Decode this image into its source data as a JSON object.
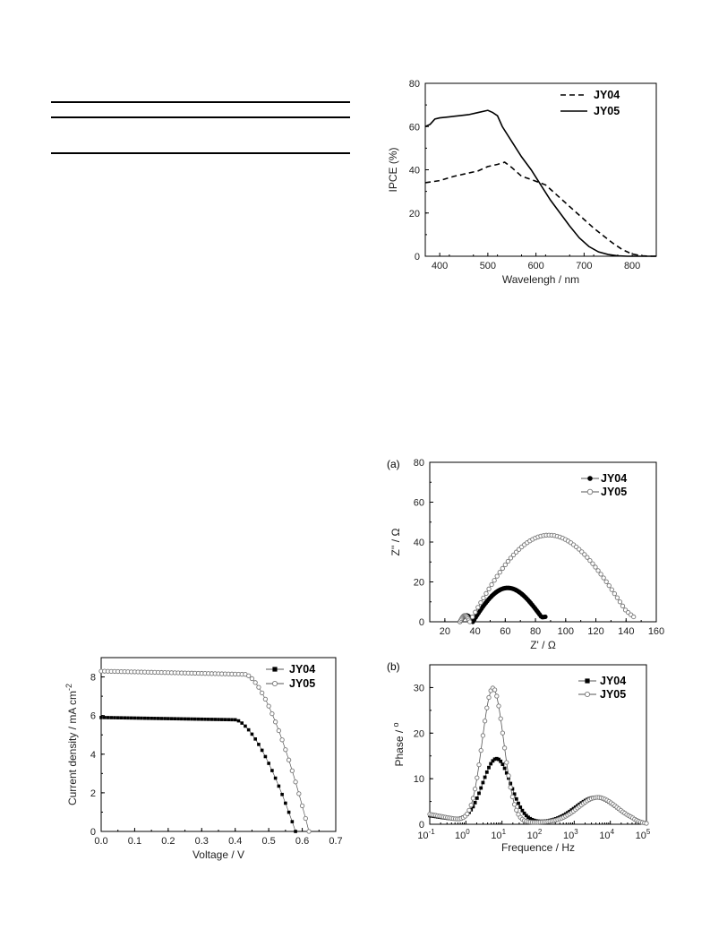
{
  "table_rules": [
    "top",
    "middle",
    "bottom"
  ],
  "chart_data": [
    {
      "id": "ipce",
      "type": "line",
      "title": "",
      "xlabel": "Wavelengh / nm",
      "ylabel": "IPCE (%)",
      "xlim": [
        370,
        850
      ],
      "ylim": [
        0,
        80
      ],
      "xticks": [
        400,
        500,
        600,
        700,
        800
      ],
      "yticks": [
        0,
        20,
        40,
        60,
        80
      ],
      "legend_position": "top-right",
      "series": [
        {
          "name": "JY04",
          "style": "dashed",
          "color": "#000000",
          "x": [
            370,
            400,
            430,
            460,
            480,
            500,
            520,
            535,
            550,
            570,
            590,
            620,
            640,
            660,
            680,
            700,
            720,
            740,
            760,
            780,
            800,
            820,
            840,
            850
          ],
          "y": [
            34,
            35,
            37,
            38.5,
            39.5,
            41.5,
            42.5,
            43.5,
            41,
            37,
            35.5,
            33,
            29,
            25,
            21,
            17,
            13,
            9.5,
            6,
            3,
            1,
            0.2,
            0,
            0
          ]
        },
        {
          "name": "JY05",
          "style": "solid",
          "color": "#000000",
          "x": [
            370,
            380,
            390,
            400,
            420,
            440,
            460,
            480,
            500,
            510,
            520,
            530,
            550,
            570,
            590,
            610,
            630,
            650,
            670,
            690,
            710,
            730,
            750,
            770,
            790,
            810,
            850
          ],
          "y": [
            60,
            61,
            63.5,
            64,
            64.5,
            65,
            65.5,
            66.5,
            67.5,
            66.5,
            65,
            60,
            53,
            46,
            40,
            33,
            26,
            20,
            14,
            8.5,
            4.5,
            2,
            0.8,
            0.2,
            0,
            0,
            0
          ]
        }
      ]
    },
    {
      "id": "nyquist",
      "type": "scatter",
      "panel_label": "(a)",
      "title": "",
      "xlabel": "Z' / Ω",
      "ylabel": "Z'' / Ω",
      "xlim": [
        10,
        160
      ],
      "ylim": [
        0,
        80
      ],
      "xticks": [
        20,
        40,
        60,
        80,
        100,
        120,
        140,
        160
      ],
      "yticks": [
        0,
        20,
        40,
        60,
        80
      ],
      "legend_position": "top-right",
      "series": [
        {
          "name": "JY04",
          "marker": "filled-circle",
          "line": true,
          "small_arc": {
            "r_start": 30,
            "r_end": 38.5,
            "points": 14
          },
          "main_arc": {
            "r_start": 38.5,
            "r_end": 86.5,
            "peak": 17,
            "points": 50
          }
        },
        {
          "name": "JY05",
          "marker": "open-circle",
          "line": true,
          "small_arc": {
            "r_start": 30,
            "r_end": 36.5,
            "points": 12
          },
          "main_arc": {
            "r_start": 36.5,
            "r_end": 145,
            "peak": 43.5,
            "points": 60
          }
        }
      ]
    },
    {
      "id": "bode",
      "type": "scatter",
      "panel_label": "(b)",
      "title": "",
      "xlabel": "Frequence / Hz",
      "ylabel": "Phase / o",
      "x_scale": "log",
      "xlim": [
        0.1,
        100000
      ],
      "ylim": [
        0,
        35
      ],
      "xtick_labels": [
        "10-1",
        "100",
        "101",
        "102",
        "103",
        "104",
        "105"
      ],
      "yticks": [
        0,
        10,
        20,
        30
      ],
      "legend_position": "top-right",
      "series": [
        {
          "name": "JY04",
          "marker": "filled-square",
          "line": true,
          "peaks": [
            {
              "center_log10": 0.85,
              "height": 14,
              "width": 0.55
            },
            {
              "center_log10": 3.6,
              "height": 5.5,
              "width": 0.8
            }
          ],
          "baseline": 1.5
        },
        {
          "name": "JY05",
          "marker": "open-circle",
          "line": true,
          "peaks": [
            {
              "center_log10": 0.75,
              "height": 29.5,
              "width": 0.42
            },
            {
              "center_log10": 3.65,
              "height": 5.5,
              "width": 0.75
            }
          ],
          "baseline": 1.8
        }
      ]
    },
    {
      "id": "jv",
      "type": "scatter",
      "title": "",
      "xlabel": "Voltage / V",
      "ylabel": "Current density / mA cm-2",
      "xlim": [
        0,
        0.7
      ],
      "ylim": [
        0,
        9
      ],
      "xticks": [
        0.0,
        0.1,
        0.2,
        0.3,
        0.4,
        0.5,
        0.6,
        0.7
      ],
      "yticks": [
        0,
        2,
        4,
        6,
        8
      ],
      "legend_position": "top-right",
      "series": [
        {
          "name": "JY04",
          "marker": "filled-square",
          "line": true,
          "jsc": 5.9,
          "voc": 0.58,
          "knee": 0.4
        },
        {
          "name": "JY05",
          "marker": "open-circle",
          "line": true,
          "jsc": 8.3,
          "voc": 0.62,
          "knee": 0.43
        }
      ]
    }
  ]
}
